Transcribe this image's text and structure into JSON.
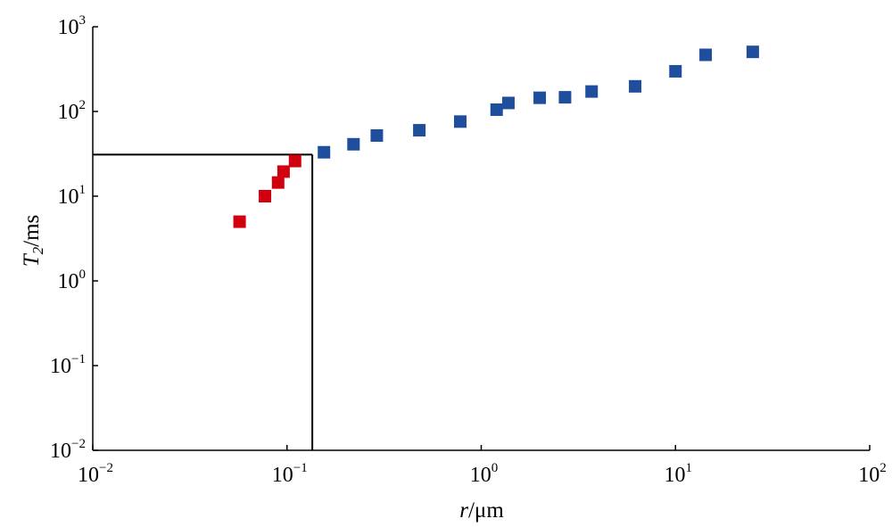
{
  "chart_data": {
    "type": "scatter",
    "x_scale": "log",
    "y_scale": "log",
    "xlim": [
      0.01,
      100
    ],
    "ylim": [
      0.01,
      1000
    ],
    "grid": false,
    "legend": "none",
    "xlabel": {
      "var": "r",
      "unit": "/μm"
    },
    "ylabel": {
      "var": "T",
      "sub": "2",
      "unit": "/ms"
    },
    "x_ticks": [
      {
        "base": "10",
        "exp": "−2"
      },
      {
        "base": "10",
        "exp": "−1"
      },
      {
        "base": "10",
        "exp": "0"
      },
      {
        "base": "10",
        "exp": "1"
      },
      {
        "base": "10",
        "exp": "2"
      }
    ],
    "y_ticks": [
      {
        "base": "10",
        "exp": "−2"
      },
      {
        "base": "10",
        "exp": "−1"
      },
      {
        "base": "10",
        "exp": "0"
      },
      {
        "base": "10",
        "exp": "1"
      },
      {
        "base": "10",
        "exp": "2"
      },
      {
        "base": "10",
        "exp": "3"
      }
    ],
    "series": [
      {
        "color": "#d0000f",
        "marker": "square",
        "points": [
          {
            "x": 0.057,
            "y": 5.0
          },
          {
            "x": 0.077,
            "y": 10.0
          },
          {
            "x": 0.09,
            "y": 14.5
          },
          {
            "x": 0.096,
            "y": 19.5
          },
          {
            "x": 0.11,
            "y": 26.0
          }
        ]
      },
      {
        "color": "#1f4e9c",
        "marker": "square",
        "points": [
          {
            "x": 0.155,
            "y": 33
          },
          {
            "x": 0.22,
            "y": 41
          },
          {
            "x": 0.29,
            "y": 52
          },
          {
            "x": 0.48,
            "y": 60
          },
          {
            "x": 0.78,
            "y": 76
          },
          {
            "x": 1.2,
            "y": 105
          },
          {
            "x": 1.38,
            "y": 126
          },
          {
            "x": 2.0,
            "y": 145
          },
          {
            "x": 2.7,
            "y": 147
          },
          {
            "x": 3.7,
            "y": 172
          },
          {
            "x": 6.2,
            "y": 198
          },
          {
            "x": 10,
            "y": 298
          },
          {
            "x": 14.3,
            "y": 466
          },
          {
            "x": 25,
            "y": 505
          }
        ]
      }
    ],
    "reference_lines": [
      {
        "kind": "horizontal",
        "y": 31,
        "x_from": 0.01,
        "x_to": 0.135
      },
      {
        "kind": "vertical",
        "x": 0.135,
        "y_from": 0.01,
        "y_to": 31
      }
    ]
  }
}
